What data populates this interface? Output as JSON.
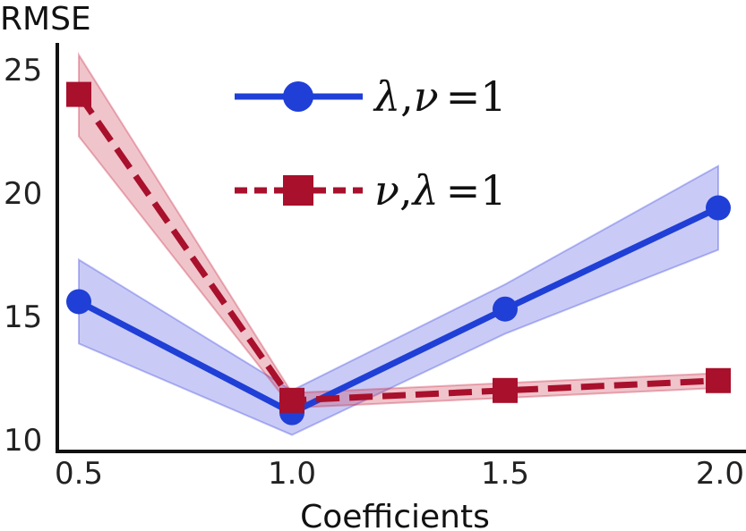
{
  "chart_data": {
    "type": "line",
    "title": "",
    "xlabel": "Coefficients",
    "ylabel": "RMSE",
    "x": [
      0.5,
      1.0,
      1.5,
      2.0
    ],
    "x_ticks": [
      "0.5",
      "1.0",
      "1.5",
      "2.0"
    ],
    "y_ticks": [
      "10",
      "15",
      "20",
      "25"
    ],
    "xlim": [
      0.45,
      2.05
    ],
    "ylim": [
      9.7,
      26.5
    ],
    "grid": false,
    "legend_position": "top-center",
    "series": [
      {
        "name": "λ, ν = 1",
        "legend_parts": [
          "λ",
          ",",
          "ν",
          "=1"
        ],
        "color": "#1f3fd6",
        "band_color": "#3c46e0",
        "line_style": "solid",
        "marker": "circle",
        "values": [
          15.6,
          11.1,
          15.3,
          19.4
        ],
        "upper": [
          17.3,
          12.0,
          16.3,
          21.1
        ],
        "lower": [
          13.9,
          10.2,
          14.3,
          17.7
        ]
      },
      {
        "name": "ν, λ = 1",
        "legend_parts": [
          "ν",
          ",",
          "λ",
          "=1"
        ],
        "color": "#a8102c",
        "band_color": "#c82a44",
        "line_style": "dashed",
        "marker": "square",
        "values": [
          24.0,
          11.6,
          12.0,
          12.4
        ],
        "upper": [
          25.6,
          11.9,
          12.3,
          12.7
        ],
        "lower": [
          22.3,
          11.3,
          11.7,
          12.1
        ]
      }
    ]
  }
}
